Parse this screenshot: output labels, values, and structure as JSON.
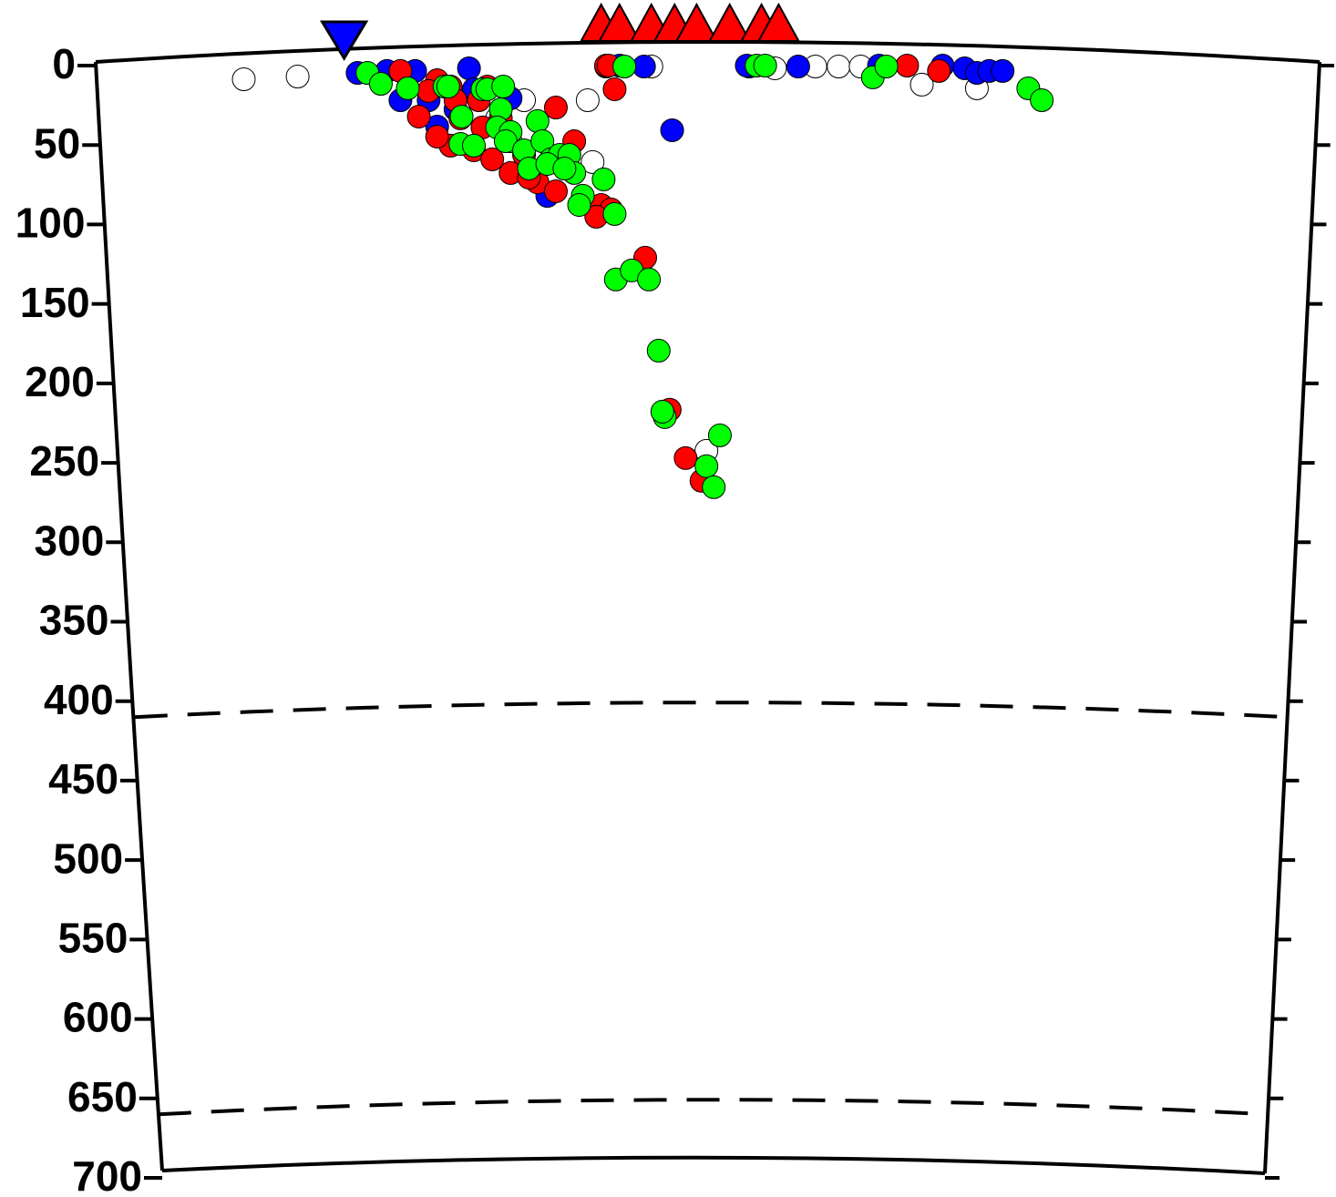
{
  "chart_data": {
    "type": "scatter",
    "xlim": [
      0,
      100
    ],
    "ylim": [
      0,
      700
    ],
    "yticks": [
      0,
      50,
      100,
      150,
      200,
      250,
      300,
      350,
      400,
      450,
      500,
      550,
      600,
      650,
      700
    ],
    "y_inverted": true,
    "reference_lines": [
      410,
      660
    ],
    "series": [
      {
        "color": "#ffffff",
        "x": [
          12.1,
          16.5,
          35.0,
          40.2,
          40.6,
          45.4,
          58.8,
          60.7,
          62.5,
          55.5,
          67.5,
          72.0,
          49.9,
          33.9,
          32.8
        ],
        "values": [
          8.6,
          6.9,
          21.8,
          21.8,
          60.7,
          0.6,
          0.6,
          0.6,
          0.6,
          1.7,
          12.0,
          14.3,
          242.4,
          47.6,
          33.2
        ]
      },
      {
        "color": "#0000ff",
        "x": [
          21.4,
          23.8,
          26.1,
          30.5,
          27.2,
          24.9,
          27.9,
          33.9,
          36.9,
          41.7,
          42.8,
          44.8,
          47.1,
          53.4,
          53.2,
          57.4,
          64.0,
          69.2,
          71.0,
          72.0,
          73.0,
          74.1,
          29.4,
          30.9
        ],
        "values": [
          4.6,
          3.4,
          3.4,
          1.7,
          21.8,
          21.8,
          38.4,
          20.6,
          82.0,
          0.6,
          0,
          0.6,
          40.7,
          0.6,
          0,
          0.6,
          0,
          0,
          1.7,
          4.6,
          3.4,
          3.4,
          27.5,
          14.9
        ]
      },
      {
        "color": "#ff0000",
        "x": [
          24.9,
          27.9,
          29.0,
          26.4,
          27.2,
          29.8,
          29.0,
          31.6,
          30.9,
          33.1,
          32.0,
          31.3,
          33.9,
          35.0,
          36.1,
          37.6,
          39.1,
          37.6,
          41.3,
          42.1,
          40.9,
          44.9,
          46.9,
          48.2,
          49.5,
          41.7,
          41.9,
          42.4,
          66.3,
          68.9,
          29.4,
          32.4,
          35.4,
          27.9
        ],
        "values": [
          3.4,
          9.2,
          13.2,
          32.1,
          16.0,
          33.2,
          50.4,
          38.9,
          53.3,
          33.2,
          13.2,
          21.8,
          67.6,
          56.2,
          73.5,
          79.1,
          47.6,
          26.4,
          87.7,
          90.5,
          95.1,
          120.9,
          216.6,
          247.0,
          261.3,
          0,
          0,
          14.9,
          0,
          3.4,
          21.8,
          59.0,
          70.5,
          44.7
        ]
      },
      {
        "color": "#00ff00",
        "x": [
          22.2,
          23.3,
          25.5,
          28.5,
          28.8,
          29.9,
          29.8,
          31.6,
          32.0,
          33.3,
          33.1,
          32.8,
          33.9,
          33.5,
          35.0,
          36.1,
          36.5,
          37.2,
          37.9,
          38.7,
          39.1,
          39.8,
          41.5,
          39.5,
          42.4,
          42.5,
          43.8,
          45.2,
          46.0,
          46.5,
          46.3,
          51.0,
          49.9,
          50.5,
          43.2,
          54.0,
          54.7,
          63.5,
          64.6,
          76.2,
          77.3,
          30.9,
          35.4,
          36.9,
          38.3
        ],
        "values": [
          4.6,
          11.5,
          14.3,
          13.2,
          13.2,
          32.1,
          49.3,
          14.9,
          14.9,
          13.2,
          27.5,
          38.9,
          41.8,
          47.6,
          53.3,
          34.9,
          47.6,
          59.0,
          56.2,
          56.2,
          67.6,
          81.9,
          71.6,
          87.7,
          93.4,
          134.6,
          128.9,
          134.6,
          179.4,
          221.2,
          217.8,
          232.7,
          252.1,
          265.3,
          0.6,
          0,
          0,
          7.4,
          0.6,
          14.3,
          21.8,
          50.4,
          64.8,
          61.9,
          64.8
        ]
      }
    ],
    "volcanoes": {
      "color": "#ff0000",
      "x": [
        41.3,
        42.8,
        45.4,
        47.3,
        49.1,
        51.8,
        54.4,
        55.8
      ]
    },
    "trench": {
      "color": "#0000ff",
      "x": 20.3
    }
  }
}
